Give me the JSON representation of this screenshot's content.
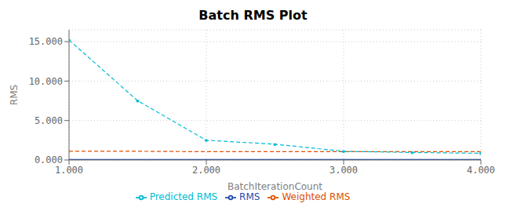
{
  "chart_data": {
    "type": "line",
    "title": "Batch RMS Plot",
    "xlabel": "BatchIterationCount",
    "ylabel": "RMS",
    "x": [
      1.0,
      1.5,
      2.0,
      2.5,
      3.0,
      3.5,
      4.0
    ],
    "series": [
      {
        "name": "RMS",
        "color": "#1e4daf",
        "line_style": "solid",
        "values": [
          0.05,
          0.05,
          0.05,
          0.05,
          0.05,
          0.05,
          0.05
        ]
      },
      {
        "name": "Weighted RMS",
        "color": "#e05000",
        "line_style": "dashed",
        "values": [
          1.1,
          1.1,
          1.05,
          1.05,
          1.05,
          1.05,
          1.05
        ]
      },
      {
        "name": "Predicted RMS",
        "color": "#00bcd4",
        "line_style": "dashed",
        "marker": "point",
        "values": [
          15.2,
          7.5,
          2.5,
          2.0,
          1.1,
          0.95,
          0.85
        ]
      }
    ],
    "xlim": [
      1.0,
      4.0
    ],
    "ylim": [
      0.0,
      16.5
    ],
    "xticks": [
      {
        "value": 1.0,
        "label": "1.000"
      },
      {
        "value": 2.0,
        "label": "2.000"
      },
      {
        "value": 3.0,
        "label": "3.000"
      },
      {
        "value": 4.0,
        "label": "4.000"
      }
    ],
    "yticks": [
      {
        "value": 0.0,
        "label": "0.000"
      },
      {
        "value": 5.0,
        "label": "5.000"
      },
      {
        "value": 10.0,
        "label": "10.000"
      },
      {
        "value": 15.0,
        "label": "15.000"
      }
    ],
    "grid": true,
    "legend": "bottom"
  }
}
